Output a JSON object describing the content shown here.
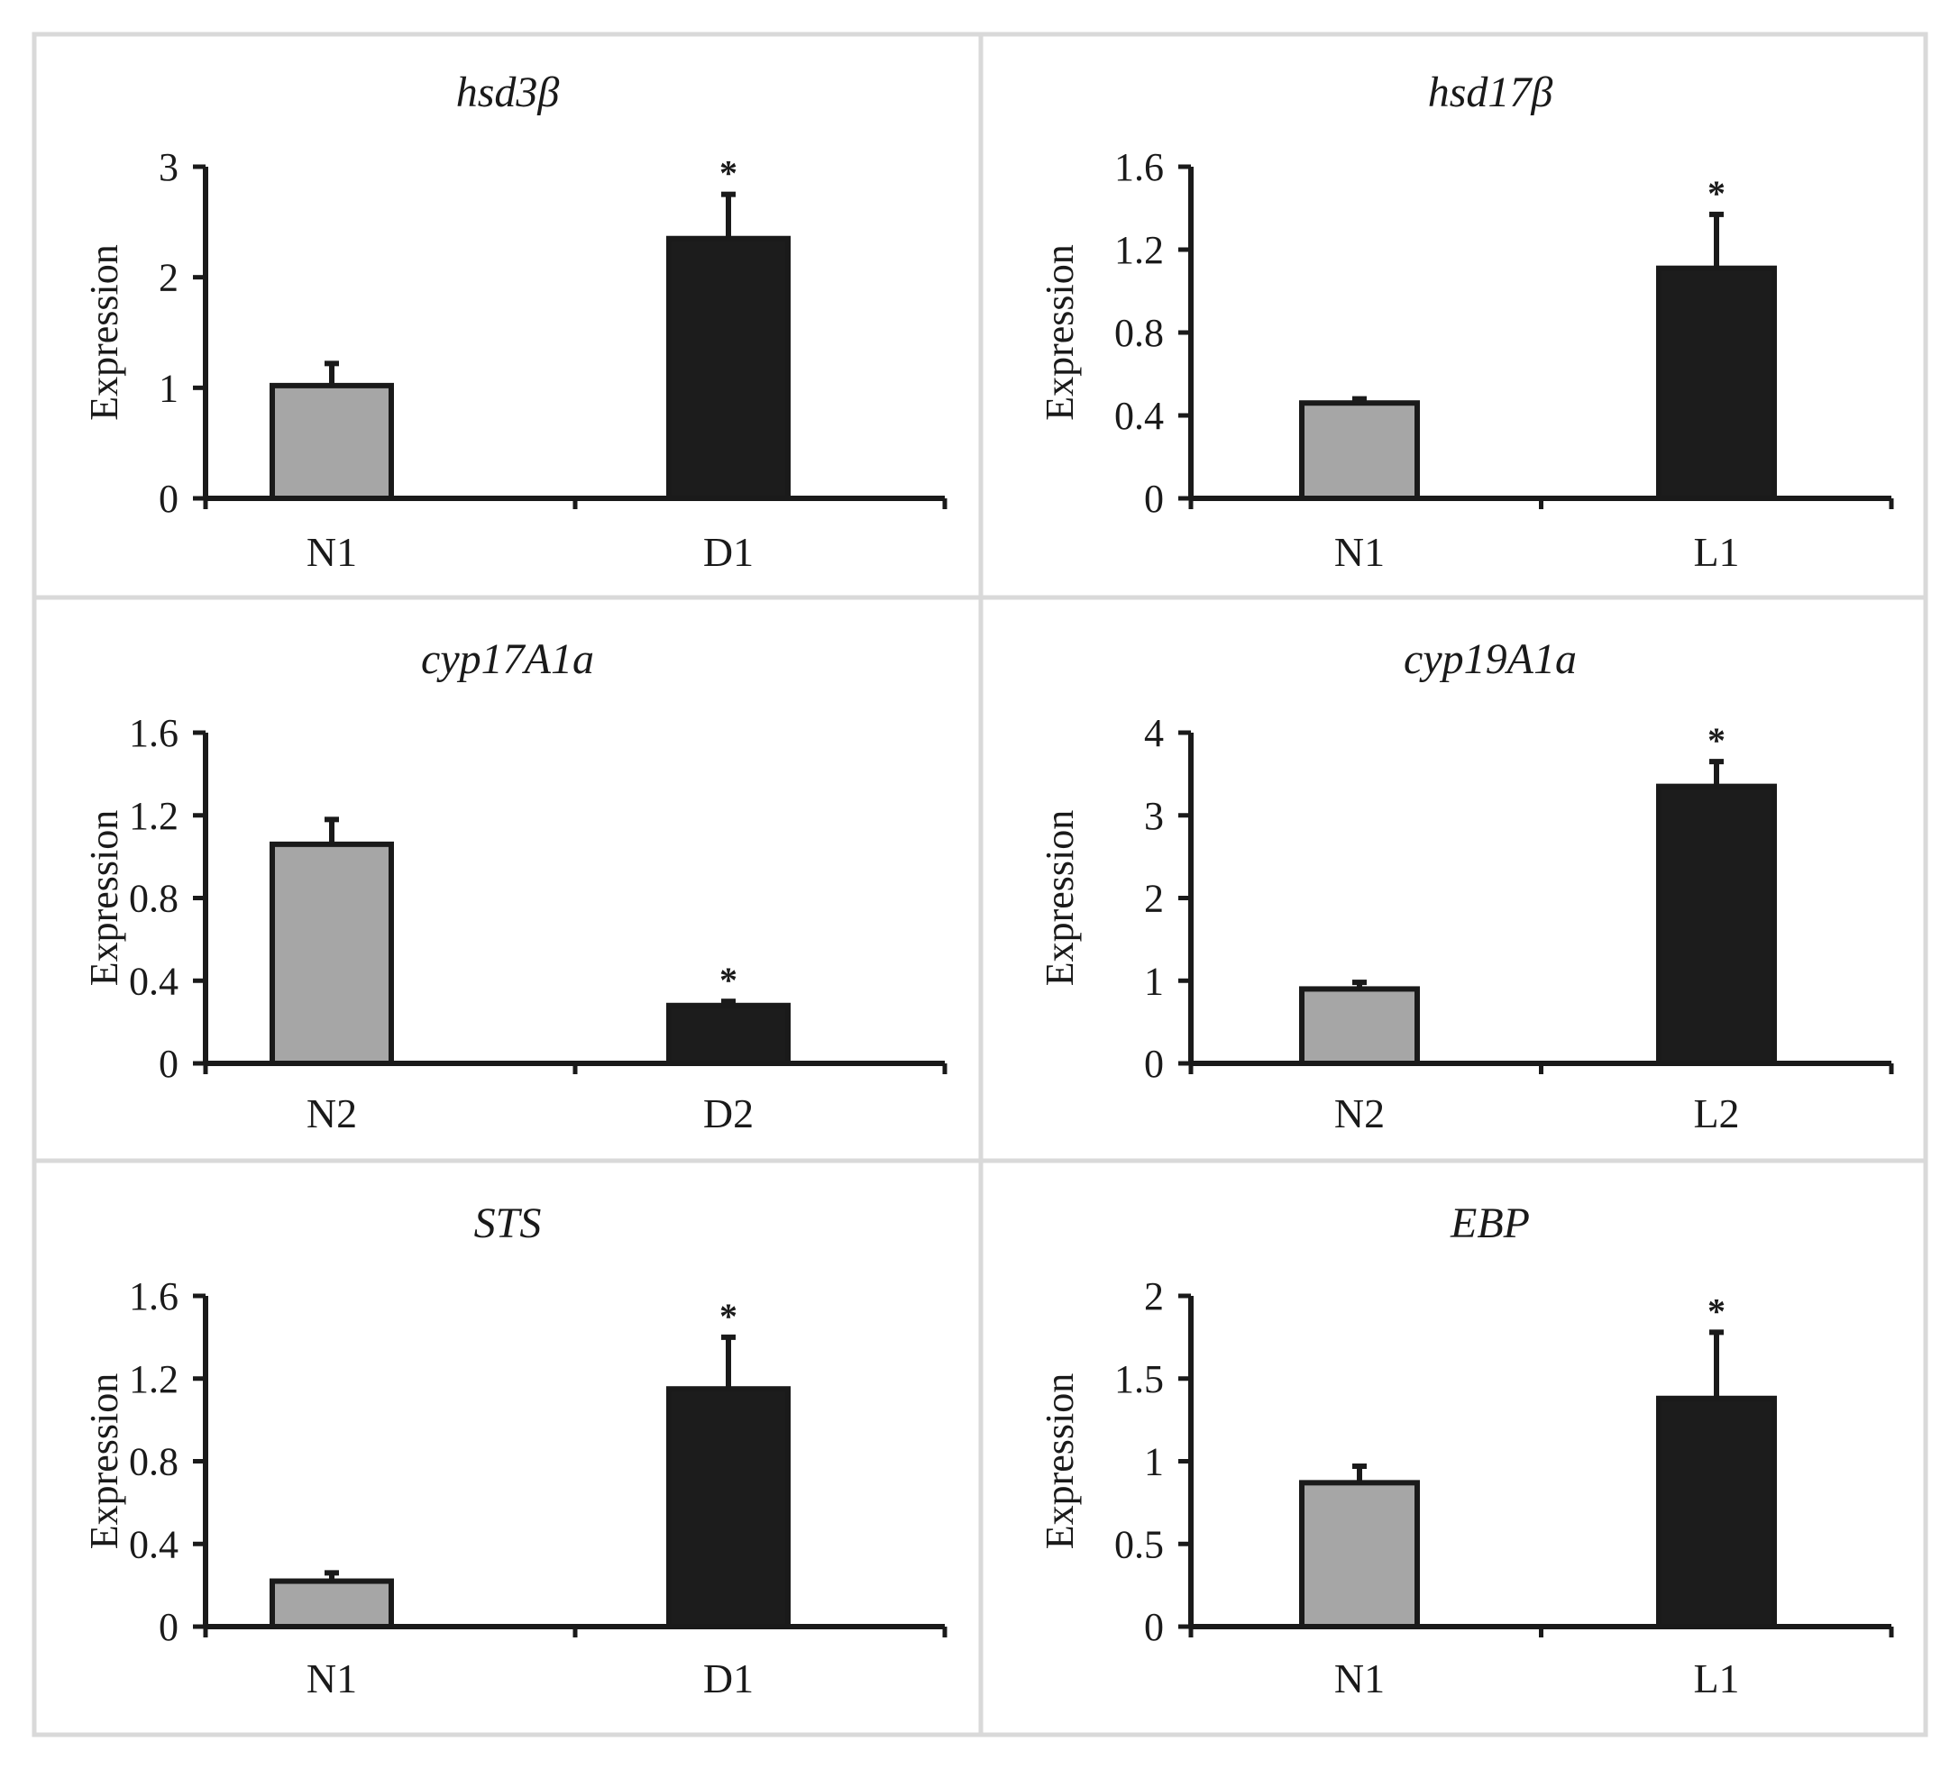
{
  "figure": {
    "ylabel": "Expression",
    "significance_marker": "*",
    "colors": {
      "control_fill": "#a6a6a6",
      "treatment_fill": "#1c1c1c",
      "stroke": "#1a1a1a",
      "frame": "#d9d9d9"
    }
  },
  "chart_data": [
    {
      "type": "bar",
      "title": "hsd3β",
      "xlabel": "",
      "ylabel": "Expression",
      "categories": [
        "N1",
        "D1"
      ],
      "values": [
        1.02,
        2.35
      ],
      "errors": [
        0.2,
        0.4
      ],
      "significant": [
        false,
        true
      ],
      "ylim": [
        0,
        3
      ],
      "yticks": [
        0,
        1,
        2,
        3
      ],
      "ytick_labels": [
        "0",
        "1",
        "2",
        "3"
      ]
    },
    {
      "type": "bar",
      "title": "hsd17β",
      "xlabel": "",
      "ylabel": "Expression",
      "categories": [
        "N1",
        "L1"
      ],
      "values": [
        0.46,
        1.11
      ],
      "errors": [
        0.02,
        0.26
      ],
      "significant": [
        false,
        true
      ],
      "ylim": [
        0,
        1.6
      ],
      "yticks": [
        0,
        0.4,
        0.8,
        1.2,
        1.6
      ],
      "ytick_labels": [
        "0",
        "0.4",
        "0.8",
        "1.2",
        "1.6"
      ]
    },
    {
      "type": "bar",
      "title": "cyp17A1a",
      "xlabel": "",
      "ylabel": "Expression",
      "categories": [
        "N2",
        "D2"
      ],
      "values": [
        1.06,
        0.28
      ],
      "errors": [
        0.12,
        0.02
      ],
      "significant": [
        false,
        true
      ],
      "ylim": [
        0,
        1.6
      ],
      "yticks": [
        0,
        0.4,
        0.8,
        1.2,
        1.6
      ],
      "ytick_labels": [
        "0",
        "0.4",
        "0.8",
        "1.2",
        "1.6"
      ]
    },
    {
      "type": "bar",
      "title": "cyp19A1a",
      "xlabel": "",
      "ylabel": "Expression",
      "categories": [
        "N2",
        "L2"
      ],
      "values": [
        0.9,
        3.35
      ],
      "errors": [
        0.08,
        0.3
      ],
      "significant": [
        false,
        true
      ],
      "ylim": [
        0,
        4
      ],
      "yticks": [
        0,
        1,
        2,
        3,
        4
      ],
      "ytick_labels": [
        "0",
        "1",
        "2",
        "3",
        "4"
      ]
    },
    {
      "type": "bar",
      "title": "STS",
      "xlabel": "",
      "ylabel": "Expression",
      "categories": [
        "N1",
        "D1"
      ],
      "values": [
        0.22,
        1.15
      ],
      "errors": [
        0.04,
        0.25
      ],
      "significant": [
        false,
        true
      ],
      "ylim": [
        0,
        1.6
      ],
      "yticks": [
        0,
        0.4,
        0.8,
        1.2,
        1.6
      ],
      "ytick_labels": [
        "0",
        "0.4",
        "0.8",
        "1.2",
        "1.6"
      ]
    },
    {
      "type": "bar",
      "title": "EBP",
      "xlabel": "",
      "ylabel": "Expression",
      "categories": [
        "N1",
        "L1"
      ],
      "values": [
        0.87,
        1.38
      ],
      "errors": [
        0.1,
        0.4
      ],
      "significant": [
        false,
        true
      ],
      "ylim": [
        0,
        2
      ],
      "yticks": [
        0,
        0.5,
        1,
        1.5,
        2
      ],
      "ytick_labels": [
        "0",
        "0.5",
        "1",
        "1.5",
        "2"
      ]
    }
  ]
}
